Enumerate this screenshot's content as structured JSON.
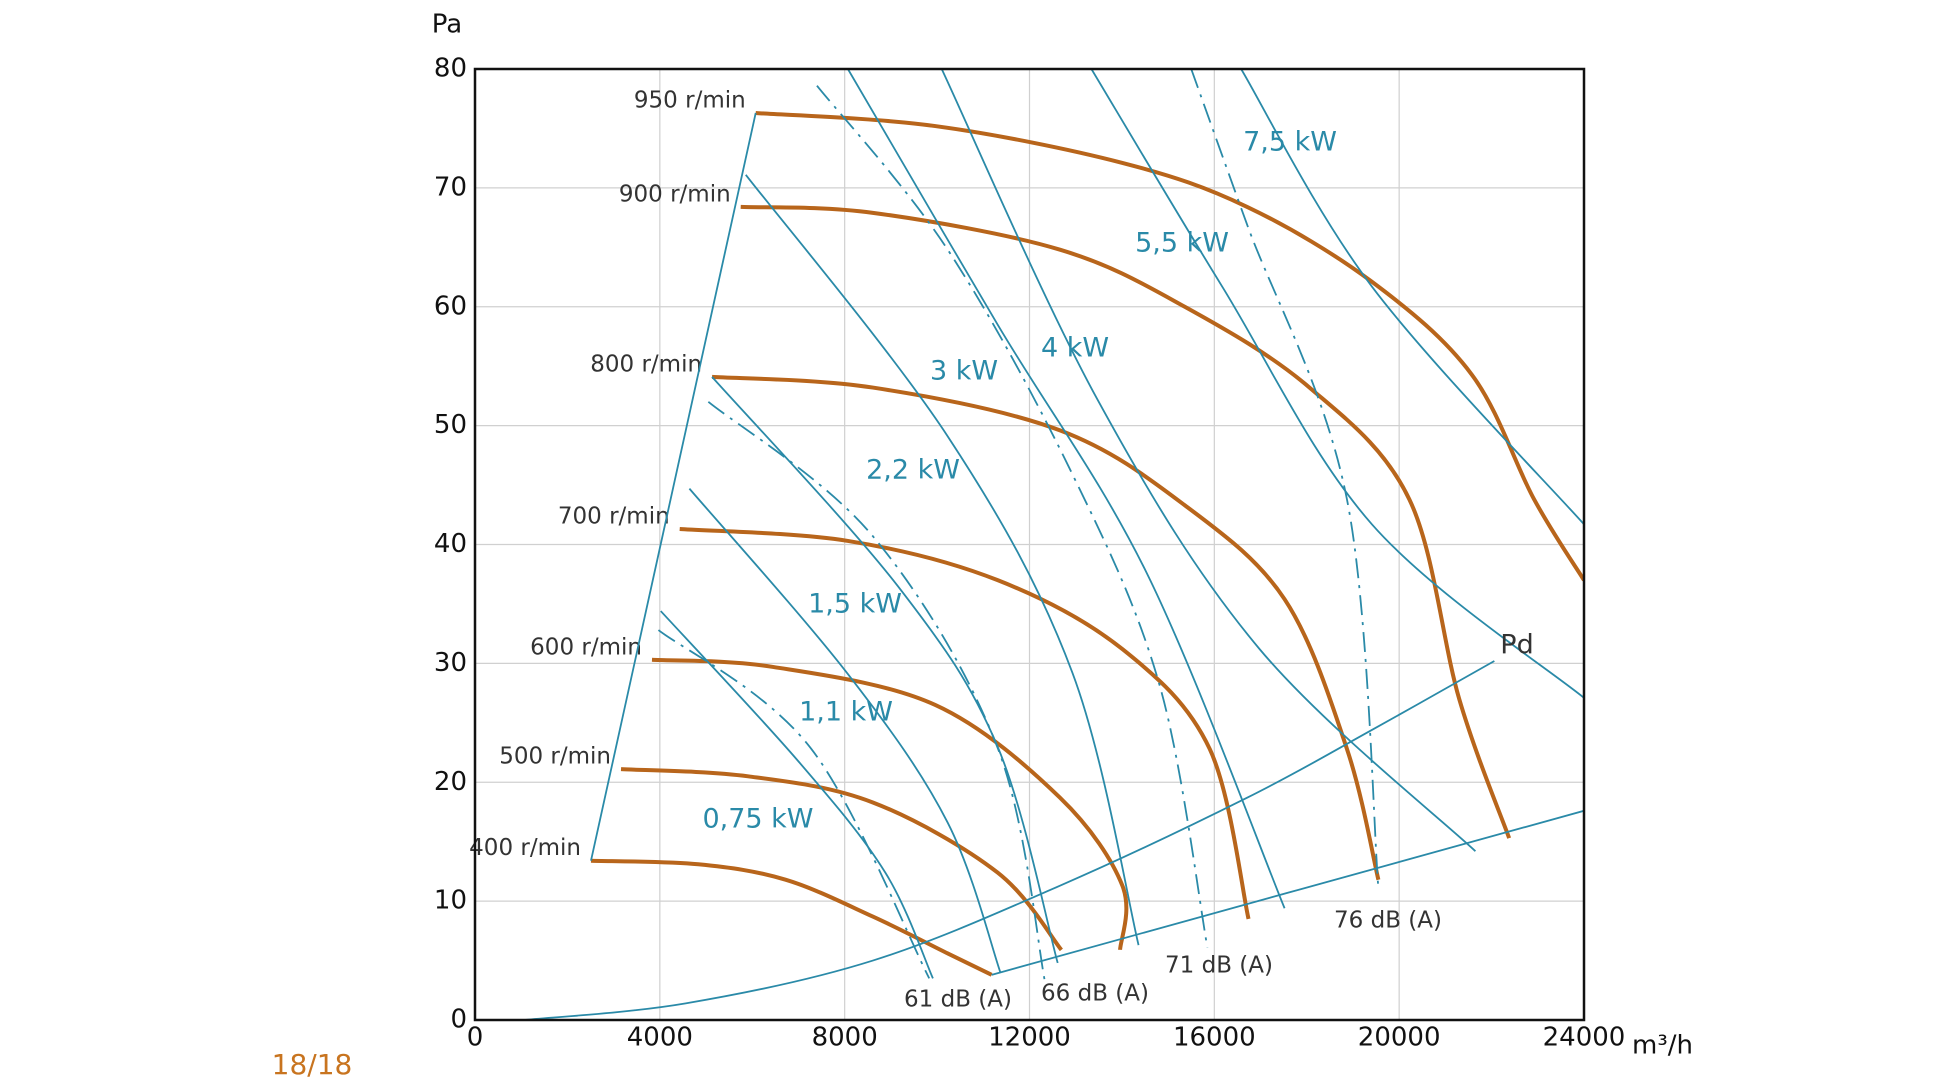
{
  "chart_data": {
    "type": "line",
    "y_label": "Pa",
    "x_label": "m³/h",
    "xlim": [
      0,
      24000
    ],
    "xticks": [
      0,
      4000,
      8000,
      12000,
      16000,
      20000,
      24000
    ],
    "ylim": [
      0,
      80
    ],
    "yticks": [
      0,
      10,
      20,
      30,
      40,
      50,
      60,
      70,
      80
    ],
    "grid": true,
    "series": [
      {
        "name": "950 r/min",
        "color": "#b8651b",
        "style": "solid",
        "x": [
          6075,
          9960,
          14010,
          16710,
          19410,
          21570,
          22920,
          24000
        ],
        "values": [
          76.3,
          75.2,
          72.1,
          68.4,
          62.1,
          54.3,
          43.8,
          37.0
        ]
      },
      {
        "name": "900 r/min",
        "color": "#b8651b",
        "style": "solid",
        "x": [
          5750,
          8610,
          12660,
          15360,
          18060,
          20220,
          21300,
          22380
        ],
        "values": [
          68.4,
          67.9,
          64.8,
          60.0,
          53.2,
          43.8,
          27.0,
          15.3
        ]
      },
      {
        "name": "800 r/min",
        "color": "#b8651b",
        "style": "solid",
        "x": [
          5130,
          8610,
          12660,
          15360,
          17520,
          18870,
          19550
        ],
        "values": [
          54.1,
          53.2,
          49.6,
          43.3,
          35.4,
          22.8,
          11.8
        ]
      },
      {
        "name": "700 r/min",
        "color": "#b8651b",
        "style": "solid",
        "x": [
          4430,
          8070,
          11310,
          14010,
          15900,
          16740
        ],
        "values": [
          41.3,
          40.3,
          37.0,
          31.2,
          22.8,
          8.5
        ]
      },
      {
        "name": "600 r/min",
        "color": "#b8651b",
        "style": "solid",
        "x": [
          3830,
          6450,
          9960,
          12660,
          14010,
          13960
        ],
        "values": [
          30.3,
          29.7,
          26.5,
          18.7,
          11.3,
          5.9
        ]
      },
      {
        "name": "500 r/min",
        "color": "#b8651b",
        "style": "solid",
        "x": [
          3160,
          5910,
          8610,
          11310,
          12690
        ],
        "values": [
          21.1,
          20.5,
          18.3,
          12.4,
          5.9
        ]
      },
      {
        "name": "400 r/min",
        "color": "#b8651b",
        "style": "solid",
        "x": [
          2510,
          4830,
          6720,
          8610,
          10230,
          11180
        ],
        "values": [
          13.4,
          13.1,
          11.8,
          8.7,
          5.6,
          3.8
        ]
      },
      {
        "name": "0,75 kW",
        "color": "#2a8aa8",
        "style": "solid",
        "x": [
          4020,
          6990,
          8880,
          9910
        ],
        "values": [
          34.4,
          21.8,
          12.4,
          3.5
        ]
      },
      {
        "name": "1,1 kW",
        "color": "#2a8aa8",
        "style": "solid",
        "x": [
          4640,
          8070,
          10230,
          11370
        ],
        "values": [
          44.7,
          29.1,
          16.6,
          4.0
        ]
      },
      {
        "name": "1,5 kW",
        "color": "#2a8aa8",
        "style": "solid",
        "x": [
          5130,
          9150,
          11310,
          12610
        ],
        "values": [
          54.1,
          36.5,
          23.0,
          4.8
        ]
      },
      {
        "name": "2,2 kW",
        "color": "#2a8aa8",
        "style": "solid",
        "x": [
          5860,
          10230,
          12930,
          14360
        ],
        "values": [
          71.1,
          49.1,
          29.2,
          6.3
        ]
      },
      {
        "name": "3 kW",
        "color": "#2a8aa8",
        "style": "solid",
        "x": [
          8070,
          11310,
          14550,
          17520
        ],
        "values": [
          80,
          58.5,
          37.5,
          9.4
        ]
      },
      {
        "name": "4 kW",
        "color": "#2a8aa8",
        "style": "solid",
        "x": [
          10100,
          13470,
          16980,
          21650
        ],
        "values": [
          80,
          52.2,
          31.2,
          14.2
        ]
      },
      {
        "name": "5,5 kW",
        "color": "#2a8aa8",
        "style": "solid",
        "x": [
          13340,
          16170,
          19410,
          24000
        ],
        "values": [
          80,
          61.7,
          41.7,
          27.1
        ]
      },
      {
        "name": "7,5 kW",
        "color": "#2a8aa8",
        "style": "solid",
        "x": [
          16580,
          19410,
          24000
        ],
        "values": [
          80,
          61.7,
          41.7
        ]
      },
      {
        "name": "61 dB (A)",
        "color": "#2a8aa8",
        "style": "dashdot",
        "x": [
          3970,
          7260,
          9830
        ],
        "values": [
          32.8,
          22.9,
          3.5
        ]
      },
      {
        "name": "66 dB (A)",
        "color": "#2a8aa8",
        "style": "dashdot",
        "x": [
          5050,
          8610,
          11310,
          12340
        ],
        "values": [
          52.0,
          40.7,
          22.9,
          3.1
        ]
      },
      {
        "name": "71 dB (A)",
        "color": "#2a8aa8",
        "style": "dashdot",
        "x": [
          7400,
          10230,
          12930,
          14820,
          15850
        ],
        "values": [
          78.6,
          64.8,
          45.9,
          28.1,
          6.1
        ]
      },
      {
        "name": "76 dB (A)",
        "color": "#2a8aa8",
        "style": "dashdot",
        "x": [
          15500,
          16710,
          18870,
          19550
        ],
        "values": [
          80,
          66.9,
          43.8,
          11.1
        ]
      },
      {
        "name": "Pd",
        "color": "#2a8aa8",
        "style": "solid",
        "x": [
          1050,
          4560,
          8610,
          12660,
          16710,
          19410,
          22060
        ],
        "values": [
          0,
          1.4,
          5.0,
          11.3,
          18.7,
          24.4,
          30.2
        ]
      },
      {
        "color": "#2a8aa8",
        "style": "solid",
        "x": [
          2510,
          6075
        ],
        "values": [
          13.4,
          76.3
        ]
      },
      {
        "color": "#2a8aa8",
        "style": "solid",
        "x": [
          11180,
          24000
        ],
        "values": [
          3.8,
          17.6
        ]
      }
    ]
  },
  "footer": {
    "page": "18/18"
  }
}
